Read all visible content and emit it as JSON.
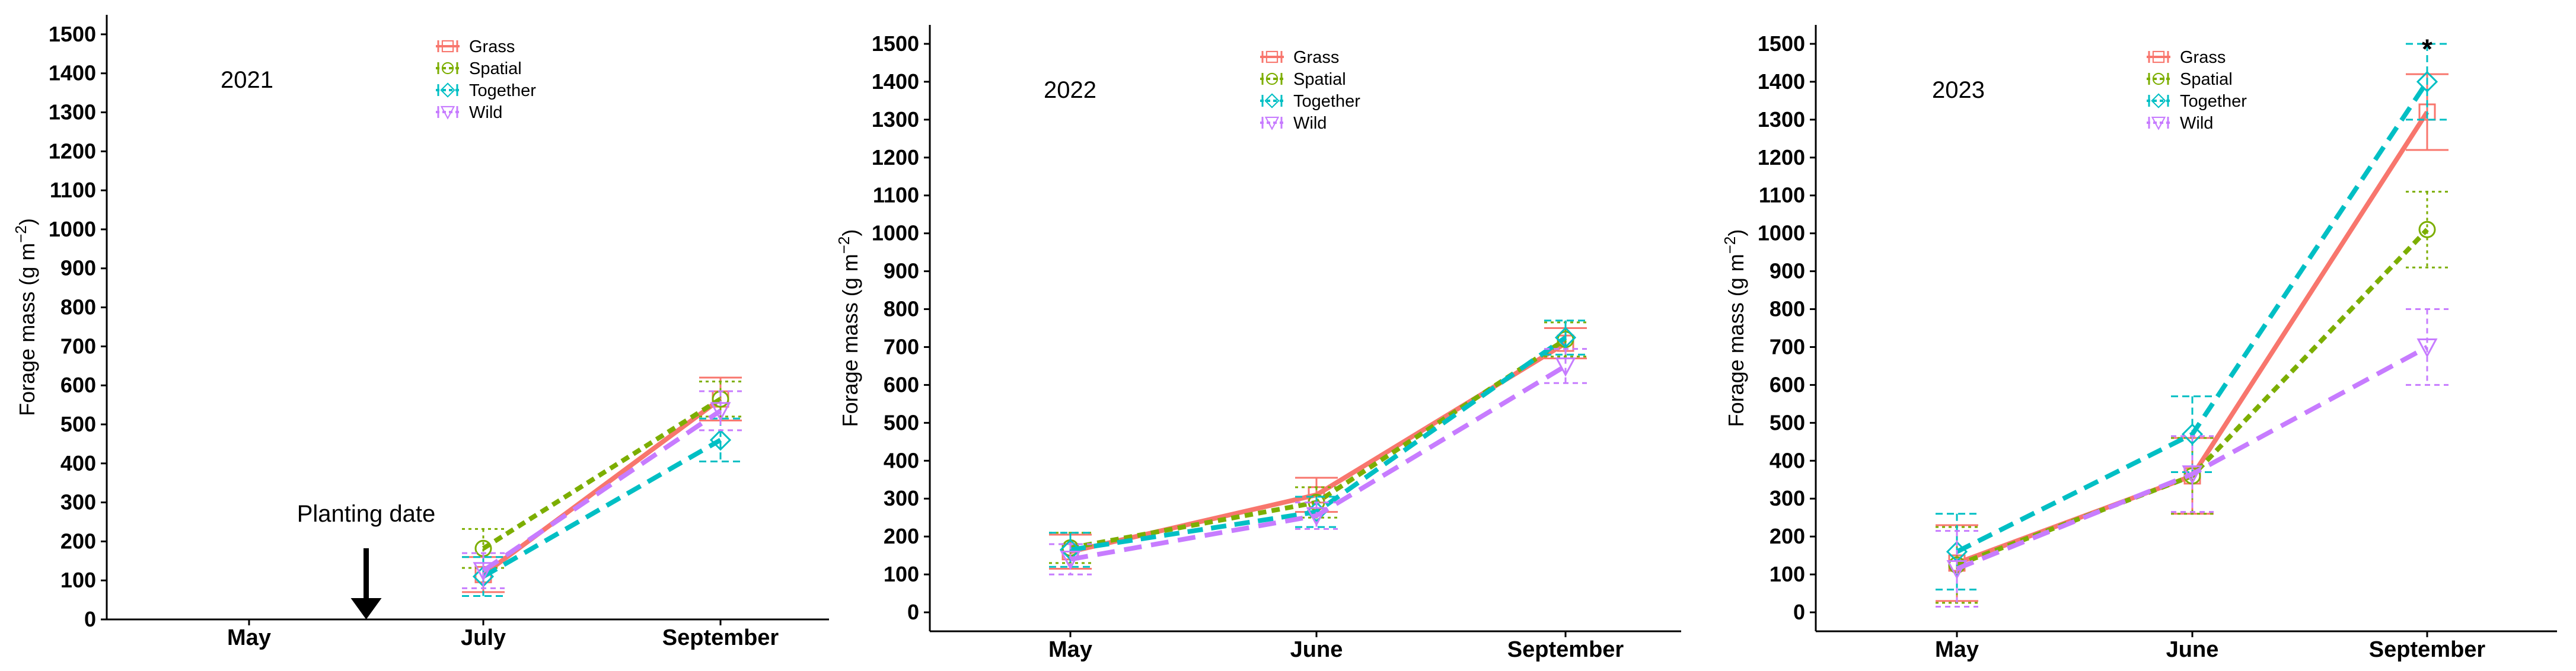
{
  "chart_data": [
    {
      "type": "line",
      "panel_label": "2021",
      "ylabel_main": "Forage mass (g m",
      "ylabel_exp": "−2",
      "ylabel_close": ")",
      "categories": [
        "May",
        "July",
        "September"
      ],
      "ylim": [
        0,
        1550
      ],
      "yticks": [
        0,
        100,
        200,
        300,
        400,
        500,
        600,
        700,
        800,
        900,
        1000,
        1100,
        1200,
        1300,
        1400,
        1500
      ],
      "legend_position": "top-center",
      "annotation": {
        "text": "Planting date",
        "arrow_at_category": 0.5,
        "arrow_from": 175,
        "arrow_to": 0
      },
      "significance": [],
      "series": [
        {
          "name": "Grass",
          "color": "#F8766D",
          "marker": "square",
          "values": [
            null,
            115,
            565
          ],
          "err": [
            null,
            45,
            55
          ]
        },
        {
          "name": "Spatial",
          "color": "#7CAE00",
          "marker": "circle",
          "values": [
            null,
            182,
            565
          ],
          "err": [
            null,
            50,
            45
          ]
        },
        {
          "name": "Together",
          "color": "#00BFC4",
          "marker": "diamond",
          "values": [
            null,
            110,
            460
          ],
          "err": [
            null,
            50,
            55
          ]
        },
        {
          "name": "Wild",
          "color": "#C77CFF",
          "marker": "triangle-down",
          "values": [
            null,
            125,
            535
          ],
          "err": [
            null,
            45,
            50
          ]
        }
      ]
    },
    {
      "type": "line",
      "panel_label": "2022",
      "ylabel_main": "Forage mass (g m",
      "ylabel_exp": "−2",
      "ylabel_close": ")",
      "categories": [
        "May",
        "June",
        "September"
      ],
      "ylim": [
        -50,
        1550
      ],
      "yticks": [
        0,
        100,
        200,
        300,
        400,
        500,
        600,
        700,
        800,
        900,
        1000,
        1100,
        1200,
        1300,
        1400,
        1500
      ],
      "legend_position": "top-center",
      "significance": [],
      "series": [
        {
          "name": "Grass",
          "color": "#F8766D",
          "marker": "square",
          "values": [
            160,
            310,
            710
          ],
          "err": [
            45,
            45,
            40
          ]
        },
        {
          "name": "Spatial",
          "color": "#7CAE00",
          "marker": "circle",
          "values": [
            170,
            290,
            720
          ],
          "err": [
            40,
            40,
            45
          ]
        },
        {
          "name": "Together",
          "color": "#00BFC4",
          "marker": "diamond",
          "values": [
            165,
            265,
            725
          ],
          "err": [
            45,
            40,
            45
          ]
        },
        {
          "name": "Wild",
          "color": "#C77CFF",
          "marker": "triangle-down",
          "values": [
            140,
            255,
            650
          ],
          "err": [
            40,
            35,
            45
          ]
        }
      ]
    },
    {
      "type": "line",
      "panel_label": "2023",
      "ylabel_main": "Forage mass (g m",
      "ylabel_exp": "−2",
      "ylabel_close": ")",
      "categories": [
        "May",
        "June",
        "September"
      ],
      "ylim": [
        -50,
        1550
      ],
      "yticks": [
        0,
        100,
        200,
        300,
        400,
        500,
        600,
        700,
        800,
        900,
        1000,
        1100,
        1200,
        1300,
        1400,
        1500
      ],
      "legend_position": "top-center",
      "significance": [
        {
          "category": 2,
          "y": 1490,
          "text": "*"
        }
      ],
      "series": [
        {
          "name": "Grass",
          "color": "#F8766D",
          "marker": "square",
          "values": [
            130,
            360,
            1320
          ],
          "err": [
            100,
            100,
            100
          ]
        },
        {
          "name": "Spatial",
          "color": "#7CAE00",
          "marker": "circle",
          "values": [
            125,
            360,
            1010
          ],
          "err": [
            100,
            100,
            100
          ]
        },
        {
          "name": "Together",
          "color": "#00BFC4",
          "marker": "diamond",
          "values": [
            160,
            470,
            1400
          ],
          "err": [
            100,
            100,
            100
          ]
        },
        {
          "name": "Wild",
          "color": "#C77CFF",
          "marker": "triangle-down",
          "values": [
            115,
            365,
            700
          ],
          "err": [
            100,
            100,
            100
          ]
        }
      ]
    }
  ]
}
